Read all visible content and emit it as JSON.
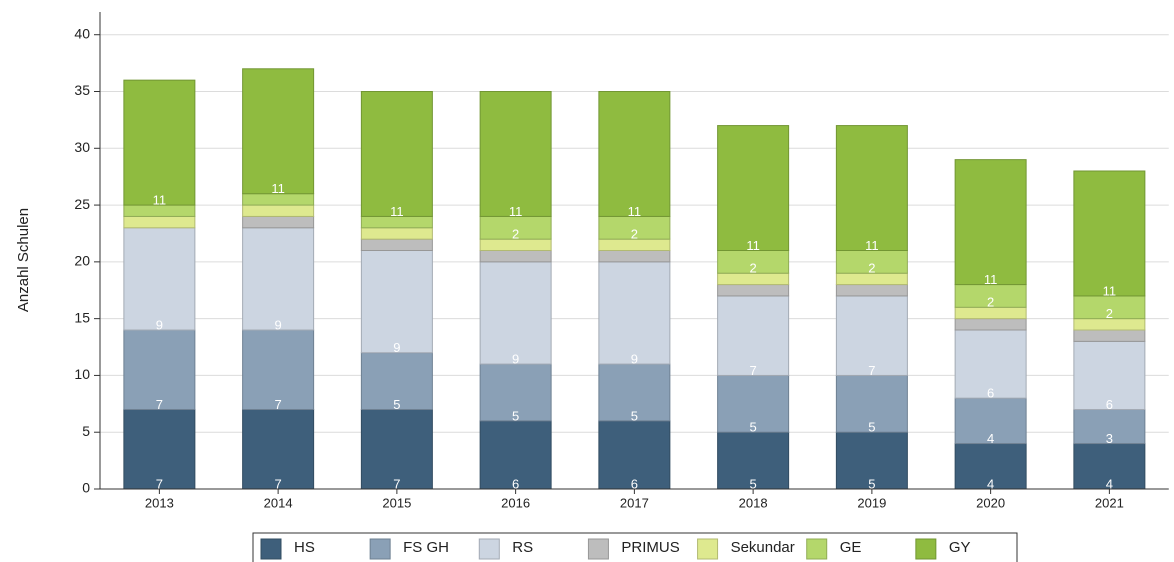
{
  "chart_data": {
    "type": "stacked_bar",
    "y_label": "Anzahl Schulen",
    "categories": [
      "2013",
      "2014",
      "2015",
      "2016",
      "2017",
      "2018",
      "2019",
      "2020",
      "2021"
    ],
    "series": [
      {
        "name": "HS",
        "color": "#3e5f7b",
        "values": [
          7,
          7,
          7,
          6,
          6,
          5,
          5,
          4,
          4
        ]
      },
      {
        "name": "FS GH",
        "color": "#8aa0b6",
        "values": [
          7,
          7,
          5,
          5,
          5,
          5,
          5,
          4,
          3
        ]
      },
      {
        "name": "RS",
        "color": "#ccd5e1",
        "values": [
          9,
          9,
          9,
          9,
          9,
          7,
          7,
          6,
          6
        ]
      },
      {
        "name": "PRIMUS",
        "color": "#bdbdbd",
        "values": [
          0,
          1,
          1,
          1,
          1,
          1,
          1,
          1,
          1
        ]
      },
      {
        "name": "Sekundar",
        "color": "#dee98f",
        "values": [
          1,
          1,
          1,
          1,
          1,
          1,
          1,
          1,
          1
        ]
      },
      {
        "name": "GE",
        "color": "#b4d76b",
        "values": [
          1,
          1,
          1,
          2,
          2,
          2,
          2,
          2,
          2
        ]
      },
      {
        "name": "GY",
        "color": "#8fbb40",
        "values": [
          11,
          11,
          11,
          11,
          11,
          11,
          11,
          11,
          11
        ]
      }
    ],
    "ylim": [
      0,
      42
    ],
    "yticks": [
      0,
      5,
      10,
      15,
      20,
      25,
      30,
      35,
      40
    ],
    "grid": true,
    "legend": "bottom"
  }
}
